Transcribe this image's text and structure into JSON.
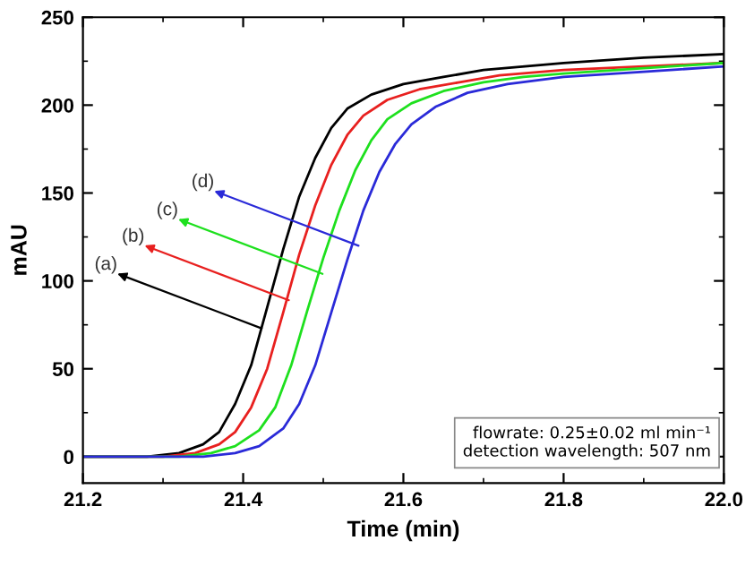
{
  "chart_data": {
    "type": "line",
    "xlabel": "Time (min)",
    "ylabel": "mAU",
    "xlim": [
      21.2,
      22.0
    ],
    "xticks": [
      21.2,
      21.4,
      21.6,
      21.8,
      {
        "value": 22.0,
        "label": "22.0"
      }
    ],
    "ylim": [
      -15,
      250
    ],
    "yticks": [
      0,
      50,
      100,
      150,
      200,
      250
    ],
    "grid": false,
    "legend": false,
    "marker": "none",
    "line_style": "solid",
    "series": [
      {
        "color": "#000000",
        "x": [
          21.2,
          21.28,
          21.32,
          21.35,
          21.37,
          21.39,
          21.41,
          21.43,
          21.45,
          21.47,
          21.49,
          21.51,
          21.53,
          21.56,
          21.6,
          21.65,
          21.7,
          21.8,
          21.9,
          22.0
        ],
        "values": [
          0,
          0,
          2,
          7,
          14,
          30,
          52,
          85,
          118,
          148,
          170,
          187,
          198,
          206,
          212,
          216,
          220,
          224,
          227,
          229
        ]
      },
      {
        "color": "#e8201f",
        "x": [
          21.2,
          21.3,
          21.34,
          21.37,
          21.39,
          21.41,
          21.43,
          21.45,
          21.47,
          21.49,
          21.51,
          21.53,
          21.55,
          21.58,
          21.62,
          21.67,
          21.72,
          21.8,
          21.9,
          22.0
        ],
        "values": [
          0,
          0,
          2,
          7,
          14,
          28,
          50,
          82,
          115,
          143,
          166,
          183,
          194,
          203,
          209,
          213,
          217,
          220,
          222,
          224
        ]
      },
      {
        "color": "#1ee01e",
        "x": [
          21.2,
          21.32,
          21.36,
          21.39,
          21.42,
          21.44,
          21.46,
          21.48,
          21.5,
          21.52,
          21.54,
          21.56,
          21.58,
          21.61,
          21.65,
          21.7,
          21.75,
          21.8,
          21.9,
          22.0
        ],
        "values": [
          0,
          0,
          2,
          6,
          15,
          28,
          52,
          83,
          113,
          140,
          163,
          180,
          192,
          201,
          208,
          213,
          216,
          218,
          221,
          224
        ]
      },
      {
        "color": "#2a2ad8",
        "x": [
          21.2,
          21.35,
          21.39,
          21.42,
          21.45,
          21.47,
          21.49,
          21.51,
          21.53,
          21.55,
          21.57,
          21.59,
          21.61,
          21.64,
          21.68,
          21.73,
          21.8,
          21.9,
          22.0
        ],
        "values": [
          0,
          0,
          2,
          6,
          16,
          30,
          52,
          82,
          112,
          140,
          162,
          178,
          189,
          199,
          207,
          212,
          216,
          219,
          222
        ]
      }
    ],
    "annotations": [
      {
        "text": "(a)",
        "x": 21.423,
        "y": 73
      },
      {
        "text": "(b)",
        "x": 21.457,
        "y": 89
      },
      {
        "text": "(c)",
        "x": 21.499,
        "y": 104
      },
      {
        "text": "(d)",
        "x": 21.544,
        "y": 120
      },
      "flowrate: 0.25±0.02 ml min⁻¹",
      "detection wavelength: 507 nm"
    ]
  }
}
